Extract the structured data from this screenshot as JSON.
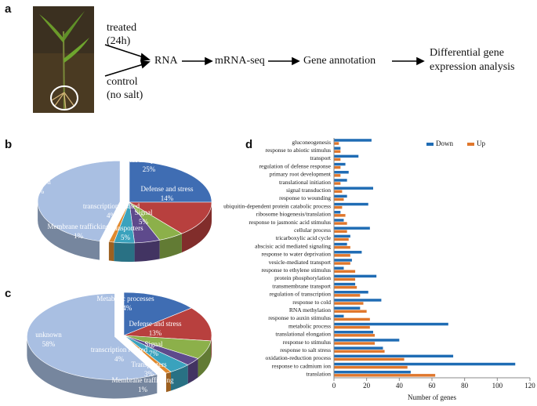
{
  "diagram": {
    "panel_label": "a",
    "treated": [
      "treated",
      "(24h)"
    ],
    "control": [
      "control",
      "(no salt)"
    ],
    "steps": [
      "RNA",
      "mRNA-seq",
      "Gene annotation"
    ],
    "result": [
      "Differential gene",
      "expression analysis"
    ]
  },
  "chart_data": [
    {
      "type": "pie",
      "panel_label": "b",
      "categories": [
        "Metabolic processes",
        "Defense and stress",
        "Signal",
        "Transporters",
        "transcription related",
        "Membrane trafficking",
        "unknown"
      ],
      "values": [
        25,
        14,
        5,
        5,
        4,
        1,
        46
      ],
      "value_labels": [
        "25%",
        "14%",
        "5%",
        "5%",
        "4%",
        "1%",
        "46%"
      ],
      "colors": [
        "#3f6db3",
        "#b8403e",
        "#8cb04a",
        "#5e4a8c",
        "#3aa2bd",
        "#e0892e",
        "#a9bfe2"
      ]
    },
    {
      "type": "pie",
      "panel_label": "c",
      "categories": [
        "Metabolic processes",
        "Defense and stress",
        "Signal",
        "Transporters",
        "transcription related",
        "Membrane trafficking",
        "unknown"
      ],
      "values": [
        14,
        13,
        7,
        3,
        4,
        1,
        58
      ],
      "value_labels": [
        "14%",
        "13%",
        "7%",
        "3%",
        "4%",
        "1%",
        "58%"
      ],
      "colors": [
        "#3f6db3",
        "#b8403e",
        "#8cb04a",
        "#5e4a8c",
        "#3aa2bd",
        "#e0892e",
        "#a9bfe2"
      ]
    },
    {
      "type": "bar",
      "orientation": "horizontal",
      "panel_label": "d",
      "categories": [
        "gluconeogenesis",
        "response to abiotic stimulus",
        "transport",
        "regulation of defense response",
        "primary root development",
        "translational initiation",
        "signal transduction",
        "response to wounding",
        "ubiquitin-dependent protein catabolic process",
        "ribosome biogenesis/translation",
        "response to jasmonic acid stimulus",
        "cellular process",
        "tricarboxylic acid cycle",
        "abscisic acid mediated signaling",
        "response to water deprivation",
        "vesicle-mediated transport",
        "response to ethylene stimulus",
        "protein phosphorylation",
        "transmembrane transport",
        "regulation of transcription",
        "response to cold",
        "RNA methylation",
        "response to auxin stimulus",
        "metabolic process",
        "translational elongation",
        "response to stimulus",
        "response to salt stress",
        "oxidation-reduction process",
        "response to cadmium ion",
        "translation"
      ],
      "series": [
        {
          "name": "Down",
          "color": "#1f6cb4",
          "values": [
            23,
            4,
            15,
            7,
            9,
            8,
            24,
            8,
            21,
            4,
            6,
            22,
            10,
            8,
            17,
            11,
            6,
            26,
            13,
            21,
            29,
            16,
            6,
            70,
            24,
            40,
            30,
            73,
            111,
            47
          ]
        },
        {
          "name": "Up",
          "color": "#e0772c",
          "values": [
            3,
            4,
            4,
            4,
            4,
            4,
            5,
            6,
            5,
            7,
            8,
            8,
            9,
            10,
            10,
            10,
            13,
            13,
            14,
            16,
            18,
            20,
            22,
            22,
            25,
            25,
            31,
            43,
            45,
            62
          ]
        }
      ],
      "xlim": [
        0,
        120
      ],
      "xticks": [
        0,
        20,
        40,
        60,
        80,
        100,
        120
      ],
      "xlabel": "Number of genes",
      "legend": "upper right"
    }
  ]
}
